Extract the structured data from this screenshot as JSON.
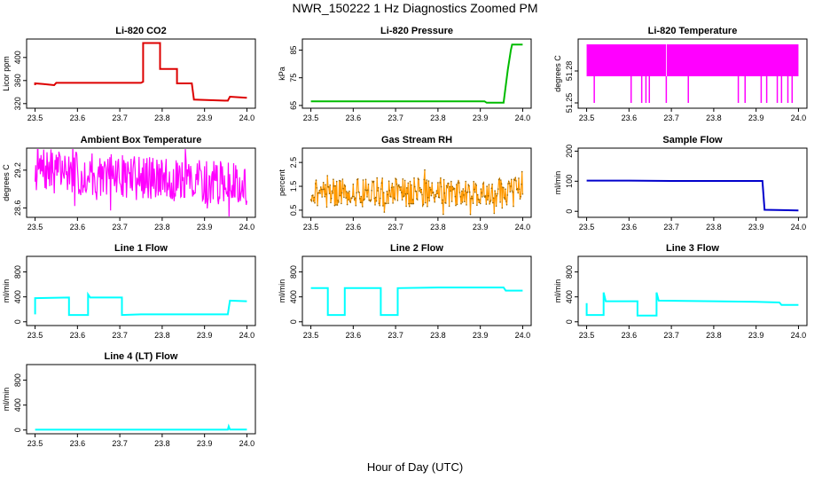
{
  "figure": {
    "title": "NWR_150222  1 Hz Diagnostics Zoomed PM",
    "xlabel": "Hour of Day (UTC)"
  },
  "chart_data": [
    {
      "type": "line",
      "title": "Li-820 CO2",
      "ylabel": "Licor ppm",
      "color": "#dd0000",
      "xlim": [
        23.48,
        24.02
      ],
      "ylim": [
        312,
        432
      ],
      "xticks": [
        "23.5",
        "23.6",
        "23.7",
        "23.8",
        "23.9",
        "24.0"
      ],
      "yticks": [
        {
          "v": 320,
          "label": "320"
        },
        {
          "v": 360,
          "label": "360"
        },
        {
          "v": 400,
          "label": "400"
        }
      ],
      "series": [
        {
          "points": [
            [
              23.5,
              352
            ],
            [
              23.5,
              355
            ],
            [
              23.52,
              354
            ],
            [
              23.545,
              352
            ],
            [
              23.55,
              356
            ],
            [
              23.6,
              356
            ],
            [
              23.7,
              356
            ],
            [
              23.75,
              356
            ],
            [
              23.755,
              358
            ],
            [
              23.755,
              425
            ],
            [
              23.795,
              425
            ],
            [
              23.795,
              380
            ],
            [
              23.835,
              380
            ],
            [
              23.835,
              355
            ],
            [
              23.87,
              355
            ],
            [
              23.875,
              327
            ],
            [
              23.955,
              325
            ],
            [
              23.96,
              332
            ],
            [
              24.0,
              330
            ]
          ]
        }
      ]
    },
    {
      "type": "line",
      "title": "Li-820 Pressure",
      "ylabel": "kPa",
      "color": "#00bb00",
      "xlim": [
        23.48,
        24.02
      ],
      "ylim": [
        64,
        89
      ],
      "xticks": [
        "23.5",
        "23.6",
        "23.7",
        "23.8",
        "23.9",
        "24.0"
      ],
      "yticks": [
        {
          "v": 65,
          "label": "65"
        },
        {
          "v": 75,
          "label": "75"
        },
        {
          "v": 85,
          "label": "85"
        }
      ],
      "series": [
        {
          "points": [
            [
              23.5,
              66.5
            ],
            [
              23.6,
              66.5
            ],
            [
              23.7,
              66.5
            ],
            [
              23.8,
              66.5
            ],
            [
              23.91,
              66.5
            ],
            [
              23.915,
              66.0
            ],
            [
              23.955,
              66.0
            ],
            [
              23.965,
              78
            ],
            [
              23.972,
              85
            ],
            [
              23.975,
              87
            ],
            [
              24.0,
              87
            ]
          ]
        }
      ]
    },
    {
      "type": "line",
      "title": "Li-820 Temperature",
      "ylabel": "degrees C",
      "color": "#ff00ff",
      "xlim": [
        23.48,
        24.02
      ],
      "ylim": [
        51.245,
        51.31
      ],
      "xticks": [
        "23.5",
        "23.6",
        "23.7",
        "23.8",
        "23.9",
        "24.0"
      ],
      "yticks": [
        {
          "v": 51.25,
          "label": "51.25"
        },
        {
          "v": 51.28,
          "label": "51.28"
        }
      ],
      "band": {
        "low": 51.275,
        "high": 51.305
      },
      "spikes": [
        23.518,
        23.605,
        23.63,
        23.64,
        23.648,
        23.688,
        23.74,
        23.858,
        23.874,
        23.912,
        23.925,
        23.95,
        23.96,
        23.975,
        23.985
      ],
      "spike_floor": 51.25
    },
    {
      "type": "line",
      "title": "Ambient Box Temperature",
      "ylabel": "degrees C",
      "color": "#ff00ff",
      "xlim": [
        23.48,
        24.02
      ],
      "ylim": [
        28.45,
        29.55
      ],
      "xticks": [
        "23.5",
        "23.6",
        "23.7",
        "23.8",
        "23.9",
        "24.0"
      ],
      "yticks": [
        {
          "v": 28.6,
          "label": "28.6"
        },
        {
          "v": 29.2,
          "label": "29.2"
        }
      ],
      "noise": {
        "start": 29.2,
        "end": 28.97,
        "amplitude": 0.35,
        "seed": 7
      }
    },
    {
      "type": "line",
      "title": "Gas Stream RH",
      "ylabel": "percent",
      "color": "#ff9900",
      "xlim": [
        23.48,
        24.02
      ],
      "ylim": [
        0.2,
        3.1
      ],
      "xticks": [
        "23.5",
        "23.6",
        "23.7",
        "23.8",
        "23.9",
        "24.0"
      ],
      "yticks": [
        {
          "v": 0.5,
          "label": "0.5"
        },
        {
          "v": 1.5,
          "label": "1.5"
        },
        {
          "v": 2.5,
          "label": "2.5"
        }
      ],
      "noise": {
        "start": 1.25,
        "end": 1.25,
        "amplitude": 0.6,
        "seed": 21
      },
      "dot_color": "#996600"
    },
    {
      "type": "line",
      "title": "Sample Flow",
      "ylabel": "ml/min",
      "color": "#0000cc",
      "xlim": [
        23.48,
        24.02
      ],
      "ylim": [
        -20,
        210
      ],
      "xticks": [
        "23.5",
        "23.6",
        "23.7",
        "23.8",
        "23.9",
        "24.0"
      ],
      "yticks": [
        {
          "v": 0,
          "label": "0"
        },
        {
          "v": 100,
          "label": "100"
        },
        {
          "v": 200,
          "label": "200"
        }
      ],
      "series": [
        {
          "points": [
            [
              23.5,
              102
            ],
            [
              23.6,
              102
            ],
            [
              23.7,
              101
            ],
            [
              23.8,
              101
            ],
            [
              23.915,
              101
            ],
            [
              23.92,
              5
            ],
            [
              24.0,
              3
            ]
          ]
        }
      ]
    },
    {
      "type": "line",
      "title": "Line 1 Flow",
      "ylabel": "ml/min",
      "color": "#00ffff",
      "xlim": [
        23.48,
        24.02
      ],
      "ylim": [
        -60,
        1050
      ],
      "xticks": [
        "23.5",
        "23.6",
        "23.7",
        "23.8",
        "23.9",
        "24.0"
      ],
      "yticks": [
        {
          "v": 0,
          "label": "0"
        },
        {
          "v": 400,
          "label": "400"
        },
        {
          "v": 800,
          "label": "800"
        }
      ],
      "series": [
        {
          "points": [
            [
              23.5,
              120
            ],
            [
              23.5,
              380
            ],
            [
              23.58,
              390
            ],
            [
              23.58,
              110
            ],
            [
              23.625,
              110
            ],
            [
              23.625,
              440
            ],
            [
              23.63,
              390
            ],
            [
              23.705,
              390
            ],
            [
              23.705,
              110
            ],
            [
              23.75,
              120
            ],
            [
              23.9,
              120
            ],
            [
              23.955,
              120
            ],
            [
              23.96,
              340
            ],
            [
              24.0,
              330
            ]
          ]
        }
      ]
    },
    {
      "type": "line",
      "title": "Line 2 Flow",
      "ylabel": "ml/min",
      "color": "#00ffff",
      "xlim": [
        23.48,
        24.02
      ],
      "ylim": [
        -60,
        1050
      ],
      "xticks": [
        "23.5",
        "23.6",
        "23.7",
        "23.8",
        "23.9",
        "24.0"
      ],
      "yticks": [
        {
          "v": 0,
          "label": "0"
        },
        {
          "v": 400,
          "label": "400"
        },
        {
          "v": 800,
          "label": "800"
        }
      ],
      "series": [
        {
          "points": [
            [
              23.5,
              540
            ],
            [
              23.54,
              540
            ],
            [
              23.54,
              110
            ],
            [
              23.58,
              110
            ],
            [
              23.58,
              540
            ],
            [
              23.665,
              540
            ],
            [
              23.665,
              110
            ],
            [
              23.705,
              110
            ],
            [
              23.705,
              540
            ],
            [
              23.8,
              550
            ],
            [
              23.91,
              550
            ],
            [
              23.955,
              550
            ],
            [
              23.96,
              500
            ],
            [
              24.0,
              500
            ]
          ]
        }
      ]
    },
    {
      "type": "line",
      "title": "Line 3 Flow",
      "ylabel": "ml/min",
      "color": "#00ffff",
      "xlim": [
        23.48,
        24.02
      ],
      "ylim": [
        -60,
        1050
      ],
      "xticks": [
        "23.5",
        "23.6",
        "23.7",
        "23.8",
        "23.9",
        "24.0"
      ],
      "yticks": [
        {
          "v": 0,
          "label": "0"
        },
        {
          "v": 400,
          "label": "400"
        },
        {
          "v": 800,
          "label": "800"
        }
      ],
      "series": [
        {
          "points": [
            [
              23.5,
              300
            ],
            [
              23.5,
              110
            ],
            [
              23.54,
              110
            ],
            [
              23.54,
              470
            ],
            [
              23.545,
              330
            ],
            [
              23.62,
              330
            ],
            [
              23.62,
              100
            ],
            [
              23.665,
              100
            ],
            [
              23.665,
              470
            ],
            [
              23.67,
              340
            ],
            [
              23.8,
              330
            ],
            [
              23.9,
              320
            ],
            [
              23.955,
              310
            ],
            [
              23.96,
              270
            ],
            [
              24.0,
              270
            ]
          ]
        }
      ]
    },
    {
      "type": "line",
      "title": "Line 4 (LT) Flow",
      "ylabel": "ml/min",
      "color": "#00ffff",
      "xlim": [
        23.48,
        24.02
      ],
      "ylim": [
        -60,
        1050
      ],
      "xticks": [
        "23.5",
        "23.6",
        "23.7",
        "23.8",
        "23.9",
        "24.0"
      ],
      "yticks": [
        {
          "v": 0,
          "label": "0"
        },
        {
          "v": 400,
          "label": "400"
        },
        {
          "v": 800,
          "label": "800"
        }
      ],
      "series": [
        {
          "points": [
            [
              23.5,
              5
            ],
            [
              23.7,
              5
            ],
            [
              23.9,
              5
            ],
            [
              23.955,
              5
            ],
            [
              23.957,
              60
            ],
            [
              23.96,
              8
            ],
            [
              24.0,
              8
            ]
          ]
        }
      ]
    }
  ]
}
